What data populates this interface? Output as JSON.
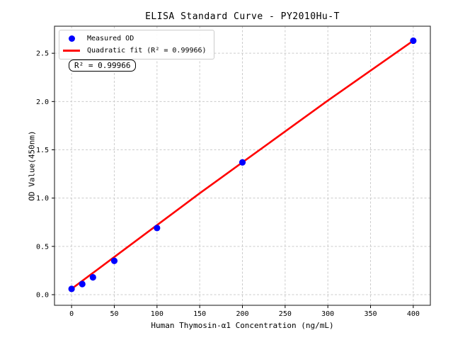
{
  "chart_data": {
    "type": "scatter",
    "title": "ELISA Standard Curve - PY2010Hu-T",
    "xlabel": "Human Thymosin-α1 Concentration (ng/mL)",
    "ylabel": "OD Value(450nm)",
    "xlim": [
      -20,
      420
    ],
    "ylim": [
      -0.11,
      2.78
    ],
    "xticks": [
      0,
      50,
      100,
      150,
      200,
      250,
      300,
      350,
      400
    ],
    "yticks": [
      0.0,
      0.5,
      1.0,
      1.5,
      2.0,
      2.5
    ],
    "grid": true,
    "legend_position": "upper-left",
    "annotation": "R² = 0.99966",
    "series": [
      {
        "name": "Measured OD",
        "type": "scatter",
        "color": "#0000ff",
        "x": [
          0,
          12.5,
          25,
          50,
          100,
          200,
          400
        ],
        "y": [
          0.06,
          0.11,
          0.18,
          0.35,
          0.69,
          1.37,
          2.63
        ]
      },
      {
        "name": "Quadratic fit (R² = 0.99966)",
        "type": "line",
        "color": "#ff0000",
        "x": [
          0,
          50,
          100,
          150,
          200,
          250,
          300,
          350,
          400
        ],
        "y": [
          0.06,
          0.39,
          0.72,
          1.05,
          1.37,
          1.69,
          2.01,
          2.32,
          2.63
        ]
      }
    ],
    "colors": {
      "grid": "#cccccc",
      "spine": "#3a3a3a",
      "tick": "#000000",
      "text": "#000000"
    }
  }
}
